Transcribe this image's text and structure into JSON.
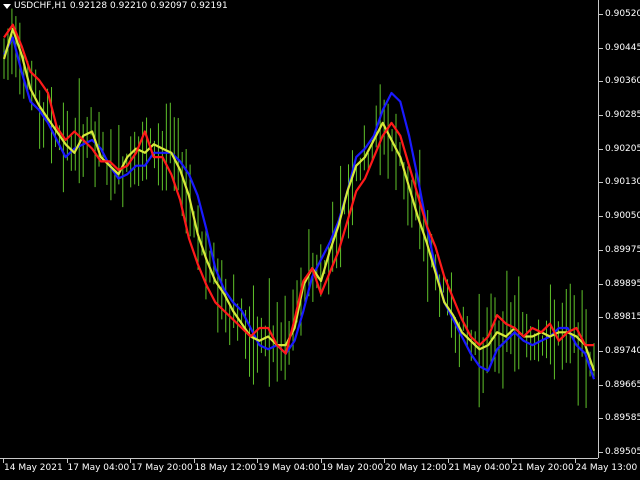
{
  "header": {
    "symbol": "USDCHF,H1",
    "open": "0.92128",
    "high": "0.92210",
    "low": "0.92097",
    "close": "0.92191"
  },
  "price_axis": {
    "labels": [
      "0.90520",
      "0.90445",
      "0.90360",
      "0.90285",
      "0.90205",
      "0.90130",
      "0.90050",
      "0.89975",
      "0.89895",
      "0.89815",
      "0.89740",
      "0.89665",
      "0.89585",
      "0.89505"
    ]
  },
  "time_axis": {
    "labels": [
      "14 May 2021",
      "17 May 04:00",
      "17 May 20:00",
      "18 May 12:00",
      "19 May 04:00",
      "19 May 20:00",
      "20 May 12:00",
      "21 May 04:00",
      "21 May 20:00",
      "24 May 13:00"
    ]
  },
  "colors": {
    "background": "#000000",
    "bars": "#5fc22a",
    "blue_line": "#1a1aff",
    "yellow_line": "#d6e83a",
    "red_line": "#ff1a1a",
    "axis_text": "#ffffff"
  },
  "chart_data": {
    "type": "line",
    "symbol": "USDCHF",
    "timeframe": "H1",
    "bars_note": "",
    "ylim": [
      0.89505,
      0.90535
    ],
    "series": [
      {
        "color": "blue",
        "y": [
          0.9044,
          0.9048,
          0.904,
          0.9033,
          0.9031,
          0.9028,
          0.9024,
          0.902,
          0.9022,
          0.9023,
          0.9024,
          0.9022,
          0.9018,
          0.9015,
          0.9016,
          0.9018,
          0.9018,
          0.9021,
          0.9021,
          0.9021,
          0.9019,
          0.9016,
          0.9011,
          0.9003,
          0.8994,
          0.8989,
          0.8986,
          0.8984,
          0.898,
          0.8976,
          0.8975,
          0.8976,
          0.8974,
          0.8977,
          0.8984,
          0.8992,
          0.8996,
          0.9,
          0.9005,
          0.9012,
          0.902,
          0.9022,
          0.9025,
          0.9031,
          0.9035,
          0.9033,
          0.9025,
          0.9015,
          0.9004,
          0.8994,
          0.8986,
          0.8982,
          0.8978,
          0.8974,
          0.8971,
          0.897,
          0.8975,
          0.8977,
          0.8979,
          0.8977,
          0.8976,
          0.8977,
          0.8978,
          0.898,
          0.898,
          0.8976,
          0.8974,
          0.8968
        ]
      },
      {
        "color": "yellow",
        "y": [
          0.9043,
          0.905,
          0.9044,
          0.9036,
          0.9032,
          0.9029,
          0.9026,
          0.9023,
          0.9021,
          0.9025,
          0.9026,
          0.902,
          0.9018,
          0.9016,
          0.902,
          0.9022,
          0.9021,
          0.9023,
          0.9022,
          0.9021,
          0.9017,
          0.9011,
          0.9002,
          0.8996,
          0.8991,
          0.8988,
          0.8984,
          0.8981,
          0.8978,
          0.8977,
          0.8978,
          0.8976,
          0.8976,
          0.898,
          0.899,
          0.8994,
          0.8991,
          0.8998,
          0.9004,
          0.9012,
          0.9018,
          0.902,
          0.9024,
          0.9028,
          0.9024,
          0.902,
          0.9013,
          0.9006,
          0.9,
          0.8993,
          0.8986,
          0.8983,
          0.8979,
          0.8977,
          0.8975,
          0.8976,
          0.8979,
          0.8978,
          0.898,
          0.8978,
          0.8978,
          0.8979,
          0.8978,
          0.8979,
          0.8979,
          0.8978,
          0.8976,
          0.897
        ]
      },
      {
        "color": "red",
        "y": [
          0.9048,
          0.9051,
          0.9046,
          0.904,
          0.9038,
          0.9035,
          0.9027,
          0.9024,
          0.9026,
          0.9024,
          0.9022,
          0.9019,
          0.9019,
          0.9017,
          0.9018,
          0.9021,
          0.9026,
          0.902,
          0.902,
          0.9016,
          0.901,
          0.9001,
          0.8995,
          0.899,
          0.8986,
          0.8984,
          0.8982,
          0.898,
          0.8978,
          0.898,
          0.898,
          0.8976,
          0.8974,
          0.8982,
          0.8991,
          0.8994,
          0.8988,
          0.8993,
          0.8998,
          0.9005,
          0.9012,
          0.9015,
          0.902,
          0.9025,
          0.9028,
          0.9025,
          0.9018,
          0.9011,
          0.9004,
          0.8999,
          0.8992,
          0.8987,
          0.8982,
          0.8978,
          0.8976,
          0.8978,
          0.8983,
          0.8981,
          0.898,
          0.8978,
          0.898,
          0.8979,
          0.8981,
          0.8977,
          0.8979,
          0.898,
          0.8976,
          0.8976
        ]
      }
    ]
  }
}
